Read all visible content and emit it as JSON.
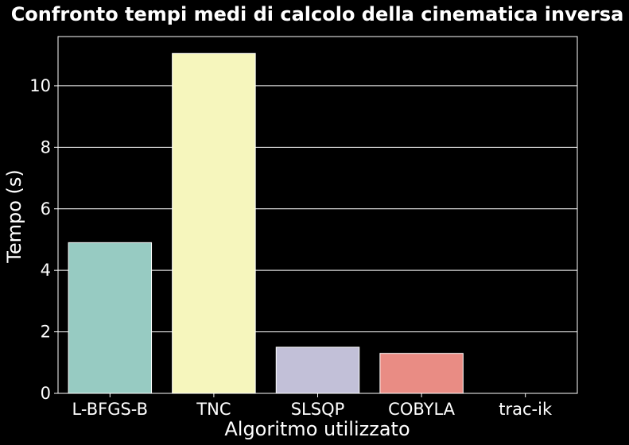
{
  "chart_data": {
    "type": "bar",
    "title": "Confronto tempi medi di calcolo della cinematica inversa",
    "xlabel": "Algoritmo utilizzato",
    "ylabel": "Tempo (s)",
    "categories": [
      "L-BFGS-B",
      "TNC",
      "SLSQP",
      "COBYLA",
      "trac-ik"
    ],
    "values": [
      4.9,
      11.05,
      1.5,
      1.3,
      0.0
    ],
    "colors": [
      "#97cbc2",
      "#f6f6bd",
      "#c2c0d8",
      "#e98c84",
      "#7fb1d3"
    ],
    "ylim": [
      0,
      11.6
    ],
    "yticks": [
      0,
      2,
      4,
      6,
      8,
      10
    ],
    "grid": true,
    "background": "#000000",
    "foreground": "#ffffff"
  }
}
